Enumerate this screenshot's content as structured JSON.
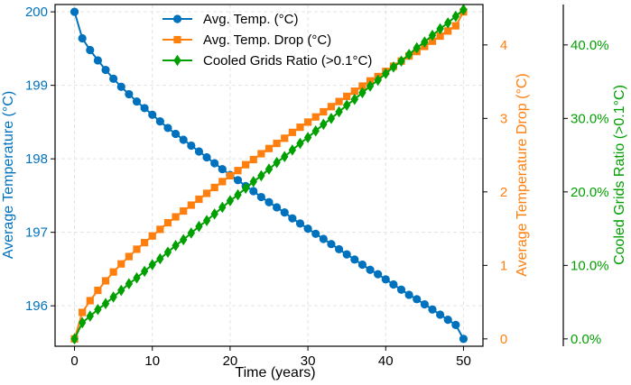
{
  "chart_data": {
    "type": "line",
    "xlabel": "Time (years)",
    "xlim": [
      -2.5,
      52.5
    ],
    "x_ticks": [
      0,
      10,
      20,
      30,
      40,
      50
    ],
    "x_tick_labels": [
      "0",
      "10",
      "20",
      "30",
      "40",
      "50"
    ],
    "grid": true,
    "legend_position": "top-center",
    "axes": {
      "left": {
        "ylabel": "Average Temperature (°C)",
        "color": "#0072bd",
        "ylim": [
          195.45,
          200.1
        ],
        "ticks": [
          196,
          197,
          198,
          199,
          200
        ],
        "tick_labels": [
          "196",
          "197",
          "198",
          "199",
          "200"
        ]
      },
      "right1": {
        "ylabel": "Average Temperature Drop (°C)",
        "color": "#ff7f0e",
        "ylim": [
          -0.1,
          4.55
        ],
        "ticks": [
          0,
          1,
          2,
          3,
          4
        ],
        "tick_labels": [
          "0",
          "1",
          "2",
          "3",
          "4"
        ]
      },
      "right2": {
        "ylabel": "Cooled Grids Ratio (>0.1°C)",
        "color": "#00a000",
        "ylim": [
          -0.01,
          0.455
        ],
        "ticks": [
          0,
          0.1,
          0.2,
          0.3,
          0.4
        ],
        "tick_labels": [
          "0.0%",
          "10.0%",
          "20.0%",
          "30.0%",
          "40.0%"
        ]
      }
    },
    "series": [
      {
        "name": "Avg. Temp. (°C)",
        "axis": "left",
        "color": "#0072bd",
        "marker": "circle",
        "x": [
          0,
          1,
          2,
          3,
          4,
          5,
          6,
          7,
          8,
          9,
          10,
          11,
          12,
          13,
          14,
          15,
          16,
          17,
          18,
          19,
          20,
          21,
          22,
          23,
          24,
          25,
          26,
          27,
          28,
          29,
          30,
          31,
          32,
          33,
          34,
          35,
          36,
          37,
          38,
          39,
          40,
          41,
          42,
          43,
          44,
          45,
          46,
          47,
          48,
          49,
          50
        ],
        "values": [
          200.0,
          199.64,
          199.48,
          199.34,
          199.21,
          199.09,
          198.98,
          198.88,
          198.78,
          198.69,
          198.6,
          198.51,
          198.42,
          198.34,
          198.26,
          198.18,
          198.1,
          198.02,
          197.94,
          197.86,
          197.78,
          197.71,
          197.63,
          197.56,
          197.48,
          197.41,
          197.34,
          197.27,
          197.19,
          197.12,
          197.05,
          196.98,
          196.91,
          196.84,
          196.77,
          196.7,
          196.63,
          196.56,
          196.49,
          196.43,
          196.36,
          196.29,
          196.22,
          196.15,
          196.09,
          196.02,
          195.95,
          195.88,
          195.81,
          195.74,
          195.55
        ]
      },
      {
        "name": "Avg. Temp. Drop (°C)",
        "axis": "right1",
        "color": "#ff7f0e",
        "marker": "square",
        "x": [
          0,
          1,
          2,
          3,
          4,
          5,
          6,
          7,
          8,
          9,
          10,
          11,
          12,
          13,
          14,
          15,
          16,
          17,
          18,
          19,
          20,
          21,
          22,
          23,
          24,
          25,
          26,
          27,
          28,
          29,
          30,
          31,
          32,
          33,
          34,
          35,
          36,
          37,
          38,
          39,
          40,
          41,
          42,
          43,
          44,
          45,
          46,
          47,
          48,
          49,
          50
        ],
        "values": [
          0.0,
          0.36,
          0.52,
          0.66,
          0.79,
          0.91,
          1.02,
          1.12,
          1.22,
          1.31,
          1.4,
          1.49,
          1.58,
          1.66,
          1.74,
          1.82,
          1.9,
          1.98,
          2.06,
          2.14,
          2.22,
          2.29,
          2.37,
          2.44,
          2.52,
          2.59,
          2.66,
          2.73,
          2.81,
          2.88,
          2.95,
          3.02,
          3.09,
          3.16,
          3.23,
          3.3,
          3.37,
          3.44,
          3.51,
          3.57,
          3.64,
          3.71,
          3.78,
          3.85,
          3.91,
          3.98,
          4.05,
          4.12,
          4.19,
          4.26,
          4.45
        ]
      },
      {
        "name": "Cooled Grids Ratio (>0.1°C)",
        "axis": "right2",
        "color": "#00a000",
        "marker": "diamond",
        "x": [
          0,
          1,
          2,
          3,
          4,
          5,
          6,
          7,
          8,
          9,
          10,
          11,
          12,
          13,
          14,
          15,
          16,
          17,
          18,
          19,
          20,
          21,
          22,
          23,
          24,
          25,
          26,
          27,
          28,
          29,
          30,
          31,
          32,
          33,
          34,
          35,
          36,
          37,
          38,
          39,
          40,
          41,
          42,
          43,
          44,
          45,
          46,
          47,
          48,
          49,
          50
        ],
        "values": [
          0.0,
          0.022,
          0.031,
          0.04,
          0.048,
          0.057,
          0.066,
          0.075,
          0.083,
          0.092,
          0.101,
          0.109,
          0.118,
          0.127,
          0.135,
          0.144,
          0.153,
          0.161,
          0.17,
          0.179,
          0.188,
          0.196,
          0.205,
          0.214,
          0.222,
          0.231,
          0.24,
          0.248,
          0.257,
          0.266,
          0.274,
          0.283,
          0.292,
          0.3,
          0.309,
          0.318,
          0.326,
          0.335,
          0.344,
          0.352,
          0.361,
          0.37,
          0.378,
          0.387,
          0.396,
          0.404,
          0.413,
          0.422,
          0.43,
          0.439,
          0.448
        ]
      }
    ]
  }
}
